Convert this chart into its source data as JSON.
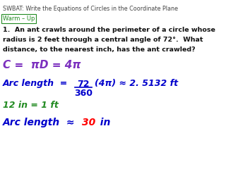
{
  "title": "SWBAT: Write the Equations of Circles in the Coordinate Plane",
  "warm_up_label": "Warm – Up",
  "problem_line1": "1.  An ant crawls around the perimeter of a circle whose",
  "problem_line2": "radius is 2 feet through a central angle of 72°.  What",
  "problem_line3": "distance, to the nearest inch, has the ant crawled?",
  "eq1": "C =  πD = 4π",
  "arc_label": "Arc length  = ",
  "frac_num": "72",
  "frac_den": "360",
  "arc_rest": "(4π) ≈ 2. 5132 ft",
  "conversion": "12 in = 1 ft",
  "arc_final_label": "Arc length  ≈ ",
  "arc_final_val": "30",
  "arc_final_unit": "  in",
  "title_color": "#444444",
  "warm_color": "#228B22",
  "problem_color": "#111111",
  "eq1_color": "#7B2FBE",
  "arc_color": "#0000CC",
  "conversion_color": "#228B22",
  "arc_final_color": "#0000CC",
  "arc_final_num_color": "#FF0000",
  "background_color": "#FFFFFF"
}
